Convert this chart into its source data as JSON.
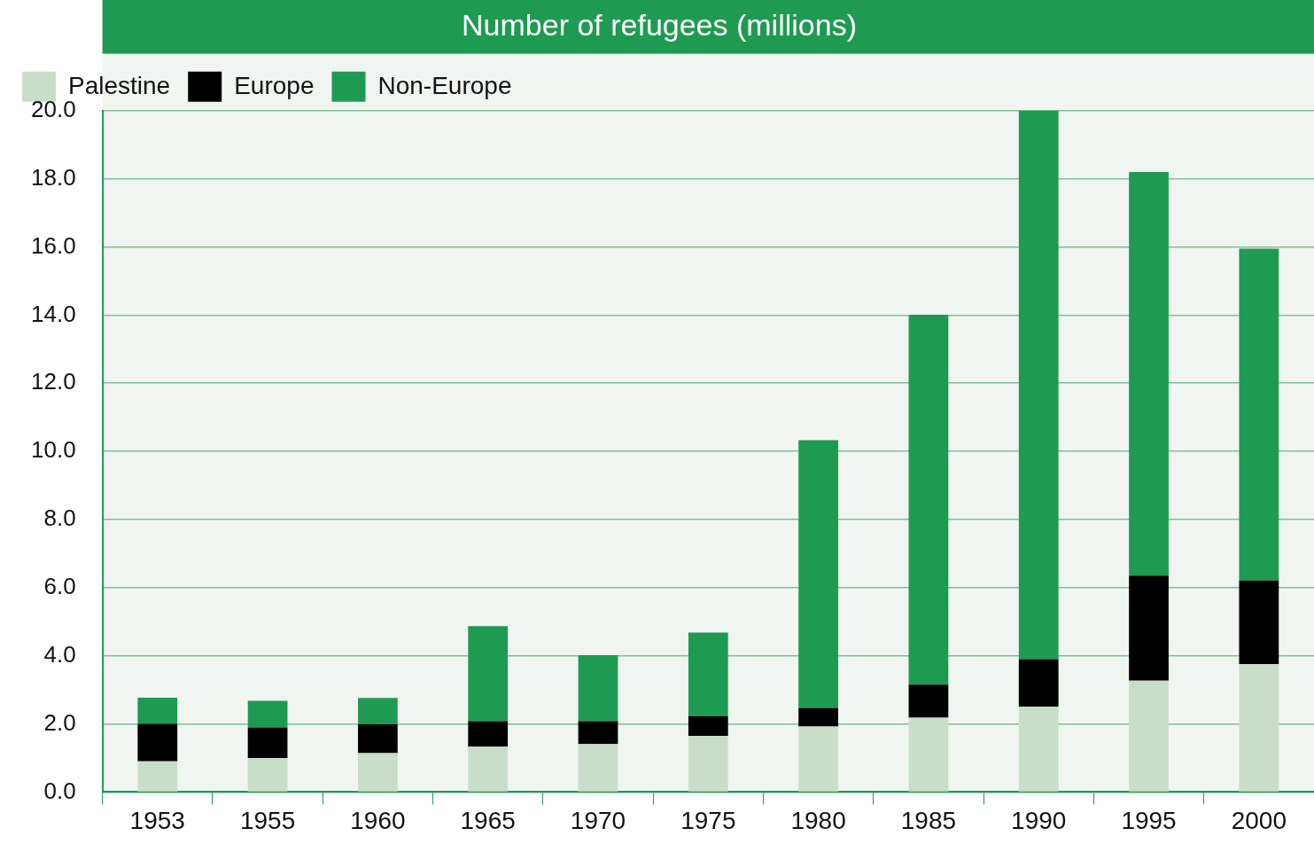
{
  "chart_data": {
    "type": "bar",
    "title": "Number of refugees (millions)",
    "stacked": true,
    "categories": [
      "1953",
      "1955",
      "1960",
      "1965",
      "1970",
      "1975",
      "1980",
      "1985",
      "1990",
      "1995",
      "2000"
    ],
    "series": [
      {
        "name": "Palestine",
        "color": "#c9dec9",
        "values": [
          0.9,
          1.0,
          1.14,
          1.33,
          1.41,
          1.65,
          1.92,
          2.18,
          2.5,
          3.27,
          3.76
        ]
      },
      {
        "name": "Europe",
        "color": "#000000",
        "values": [
          1.1,
          0.9,
          0.85,
          0.75,
          0.67,
          0.58,
          0.55,
          0.97,
          1.4,
          3.08,
          2.45
        ]
      },
      {
        "name": "Non-Europe",
        "color": "#1e9a52",
        "values": [
          0.77,
          0.78,
          0.77,
          2.79,
          1.94,
          2.45,
          7.86,
          10.86,
          16.1,
          11.85,
          9.74
        ]
      }
    ],
    "ylim": [
      0,
      20
    ],
    "yticks": [
      {
        "value": 0,
        "label": "0.0"
      },
      {
        "value": 2,
        "label": "2.0"
      },
      {
        "value": 4,
        "label": "4.0"
      },
      {
        "value": 6,
        "label": "6.0"
      },
      {
        "value": 8,
        "label": "8.0"
      },
      {
        "value": 10,
        "label": "10.0"
      },
      {
        "value": 12,
        "label": "12.0"
      },
      {
        "value": 14,
        "label": "14.0"
      },
      {
        "value": 16,
        "label": "16.0"
      },
      {
        "value": 18,
        "label": "18.0"
      },
      {
        "value": 20,
        "label": "20.0"
      }
    ],
    "grid": "y",
    "legend": "top left"
  }
}
